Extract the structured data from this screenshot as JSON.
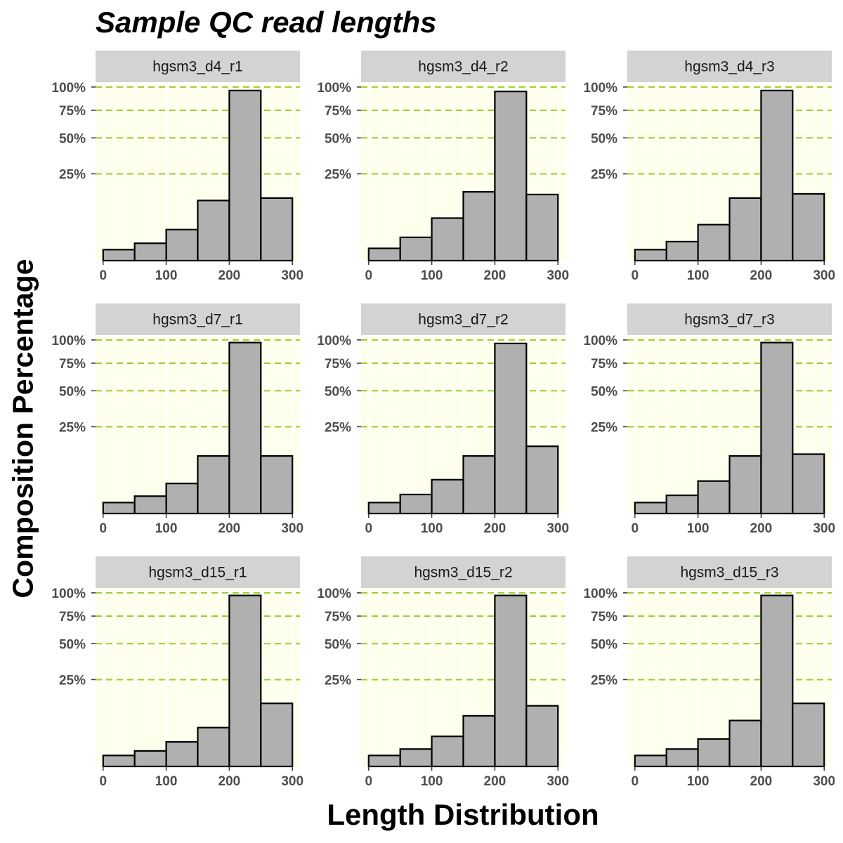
{
  "chart_data": {
    "type": "bar",
    "title": "Sample QC read lengths",
    "xlabel": "Length Distribution",
    "ylabel": "Composition Percentage",
    "x_ticks": [
      "0",
      "100",
      "200",
      "300"
    ],
    "x_ticks_values": [
      0,
      100,
      200,
      300
    ],
    "y_ticks": [
      "25%",
      "50%",
      "75%",
      "100%"
    ],
    "y_ticks_values": [
      0.25,
      0.5,
      0.75,
      1.0
    ],
    "y_scale": "sqrt",
    "xlim": [
      -12,
      312
    ],
    "ylim": [
      0,
      1.04
    ],
    "bins": [
      [
        0,
        50
      ],
      [
        50,
        100
      ],
      [
        100,
        150
      ],
      [
        150,
        200
      ],
      [
        200,
        250
      ],
      [
        250,
        300
      ]
    ],
    "grid": true,
    "gridline_style": "dashed",
    "colors": {
      "panel_background": "#ffffee",
      "major_grid": "#ffffff",
      "y_grid": "#9acd32",
      "bar_fill": "#b0b0b0",
      "bar_stroke": "#000000",
      "strip_background": "#d3d3d3"
    },
    "facets": [
      {
        "label": "hgsm3_d4_r1",
        "values": [
          0.004,
          0.01,
          0.032,
          0.12,
          0.96,
          0.13
        ]
      },
      {
        "label": "hgsm3_d4_r2",
        "values": [
          0.005,
          0.018,
          0.06,
          0.157,
          0.95,
          0.145
        ]
      },
      {
        "label": "hgsm3_d4_r3",
        "values": [
          0.004,
          0.012,
          0.043,
          0.13,
          0.96,
          0.148
        ]
      },
      {
        "label": "hgsm3_d7_r1",
        "values": [
          0.004,
          0.01,
          0.03,
          0.11,
          0.97,
          0.11
        ]
      },
      {
        "label": "hgsm3_d7_r2",
        "values": [
          0.004,
          0.012,
          0.038,
          0.11,
          0.96,
          0.15
        ]
      },
      {
        "label": "hgsm3_d7_r3",
        "values": [
          0.004,
          0.011,
          0.035,
          0.11,
          0.97,
          0.117
        ]
      },
      {
        "label": "hgsm3_d15_r1",
        "values": [
          0.004,
          0.008,
          0.02,
          0.05,
          0.97,
          0.132
        ]
      },
      {
        "label": "hgsm3_d15_r2",
        "values": [
          0.004,
          0.01,
          0.03,
          0.085,
          0.97,
          0.122
        ]
      },
      {
        "label": "hgsm3_d15_r3",
        "values": [
          0.004,
          0.01,
          0.025,
          0.07,
          0.97,
          0.132
        ]
      }
    ]
  }
}
